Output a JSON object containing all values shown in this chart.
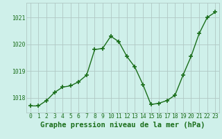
{
  "x": [
    0,
    1,
    2,
    3,
    4,
    5,
    6,
    7,
    8,
    9,
    10,
    11,
    12,
    13,
    14,
    15,
    16,
    17,
    18,
    19,
    20,
    21,
    22,
    23
  ],
  "y": [
    1017.7,
    1017.7,
    1017.9,
    1018.2,
    1018.4,
    1018.45,
    1018.6,
    1018.85,
    1019.8,
    1019.85,
    1020.3,
    1020.1,
    1019.55,
    1019.15,
    1018.5,
    1017.75,
    1017.8,
    1017.9,
    1018.1,
    1018.85,
    1019.55,
    1020.4,
    1021.0,
    1021.2
  ],
  "line_color": "#1a6e1a",
  "marker": "+",
  "marker_size": 4,
  "marker_lw": 1.2,
  "line_width": 1.0,
  "bg_color": "#cff0ea",
  "grid_color": "#b0c8c4",
  "xlabel": "Graphe pression niveau de la mer (hPa)",
  "xlabel_fontsize": 7.5,
  "xlabel_color": "#1a6e1a",
  "ytick_labels": [
    "1018",
    "1019",
    "1020",
    "1021"
  ],
  "ytick_vals": [
    1018,
    1019,
    1020,
    1021
  ],
  "xticks": [
    0,
    1,
    2,
    3,
    4,
    5,
    6,
    7,
    8,
    9,
    10,
    11,
    12,
    13,
    14,
    15,
    16,
    17,
    18,
    19,
    20,
    21,
    22,
    23
  ],
  "ylim": [
    1017.45,
    1021.55
  ],
  "xlim": [
    -0.5,
    23.5
  ],
  "tick_fontsize": 5.8,
  "tick_color": "#1a6e1a"
}
